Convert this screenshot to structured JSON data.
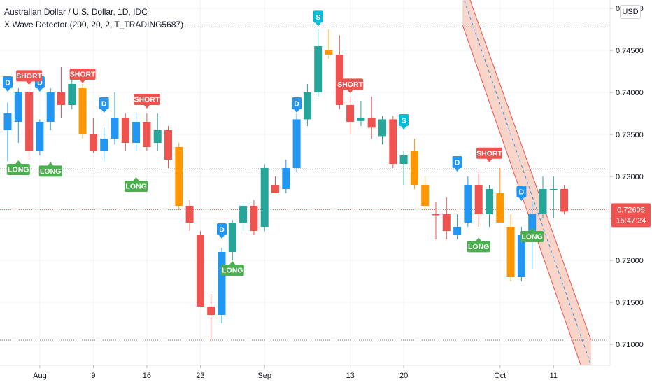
{
  "header": {
    "symbol_line": "Australian Dollar / U.S. Dollar, 1D, IDC",
    "indicator_line": "X Wave Detector (200, 20, 2, T_TRADING5687)"
  },
  "currency_button": "USD",
  "price_label": {
    "price": "0.72605",
    "countdown": "15:47:24",
    "color": "#ef5350"
  },
  "colors": {
    "bull_blue": "#2196f3",
    "bear_red": "#ef5350",
    "bull_teal": "#26a69a",
    "orange": "#ff9800",
    "long_green": "#4caf50",
    "short_red": "#ef5350",
    "d_blue": "#2196f3",
    "s_cyan": "#00bcd4",
    "channel_fill": "#f7c6b6",
    "channel_line": "#ef5350"
  },
  "chart_data": {
    "type": "candlestick",
    "ylim": [
      0.7075,
      0.751
    ],
    "y_ticks": [
      "0.75000",
      "0.74500",
      "0.74000",
      "0.73500",
      "0.73000",
      "0.72500",
      "0.72000",
      "0.71500",
      "0.71000"
    ],
    "y_tick_values": [
      0.75,
      0.745,
      0.74,
      0.735,
      0.73,
      0.725,
      0.72,
      0.715,
      0.71
    ],
    "x_ticks": [
      {
        "label": "Aug",
        "index": 3
      },
      {
        "label": "9",
        "index": 8
      },
      {
        "label": "16",
        "index": 13
      },
      {
        "label": "23",
        "index": 18
      },
      {
        "label": "Sep",
        "index": 24
      },
      {
        "label": "13",
        "index": 32
      },
      {
        "label": "20",
        "index": 37
      },
      {
        "label": "Oct",
        "index": 46
      },
      {
        "label": "11",
        "index": 51
      }
    ],
    "horizontal_levels": [
      0.7478,
      0.7309,
      0.7105
    ],
    "current_price": 0.72605,
    "candles": [
      {
        "o": 0.7355,
        "h": 0.7388,
        "l": 0.7318,
        "c": 0.7375,
        "color": "bull_blue"
      },
      {
        "o": 0.7365,
        "h": 0.7405,
        "l": 0.734,
        "c": 0.74,
        "color": "bull_blue"
      },
      {
        "o": 0.74,
        "h": 0.7405,
        "l": 0.732,
        "c": 0.733,
        "color": "bear_red"
      },
      {
        "o": 0.733,
        "h": 0.7368,
        "l": 0.7325,
        "c": 0.7365,
        "color": "bull_blue"
      },
      {
        "o": 0.7365,
        "h": 0.7405,
        "l": 0.7355,
        "c": 0.74,
        "color": "bull_blue"
      },
      {
        "o": 0.74,
        "h": 0.743,
        "l": 0.737,
        "c": 0.7385,
        "color": "bear_red"
      },
      {
        "o": 0.7385,
        "h": 0.742,
        "l": 0.738,
        "c": 0.741,
        "color": "bull_teal"
      },
      {
        "o": 0.7405,
        "h": 0.741,
        "l": 0.7345,
        "c": 0.735,
        "color": "orange"
      },
      {
        "o": 0.735,
        "h": 0.737,
        "l": 0.7328,
        "c": 0.733,
        "color": "bear_red"
      },
      {
        "o": 0.733,
        "h": 0.7358,
        "l": 0.7318,
        "c": 0.7345,
        "color": "bull_blue"
      },
      {
        "o": 0.7345,
        "h": 0.74,
        "l": 0.7338,
        "c": 0.737,
        "color": "bull_blue"
      },
      {
        "o": 0.737,
        "h": 0.7375,
        "l": 0.733,
        "c": 0.734,
        "color": "bear_red"
      },
      {
        "o": 0.734,
        "h": 0.7375,
        "l": 0.733,
        "c": 0.7365,
        "color": "bull_blue"
      },
      {
        "o": 0.7365,
        "h": 0.7375,
        "l": 0.733,
        "c": 0.7335,
        "color": "bear_red"
      },
      {
        "o": 0.734,
        "h": 0.7375,
        "l": 0.733,
        "c": 0.7355,
        "color": "bull_teal"
      },
      {
        "o": 0.7355,
        "h": 0.736,
        "l": 0.731,
        "c": 0.732,
        "color": "bear_red"
      },
      {
        "o": 0.7335,
        "h": 0.734,
        "l": 0.726,
        "c": 0.7265,
        "color": "orange"
      },
      {
        "o": 0.7265,
        "h": 0.7272,
        "l": 0.7235,
        "c": 0.7245,
        "color": "bear_red"
      },
      {
        "o": 0.723,
        "h": 0.7235,
        "l": 0.7145,
        "c": 0.7145,
        "color": "bear_red"
      },
      {
        "o": 0.7145,
        "h": 0.716,
        "l": 0.7105,
        "c": 0.7135,
        "color": "bear_red"
      },
      {
        "o": 0.7135,
        "h": 0.7215,
        "l": 0.7125,
        "c": 0.721,
        "color": "bull_blue"
      },
      {
        "o": 0.721,
        "h": 0.7248,
        "l": 0.72,
        "c": 0.7245,
        "color": "bull_teal"
      },
      {
        "o": 0.7245,
        "h": 0.727,
        "l": 0.7235,
        "c": 0.7265,
        "color": "bull_teal"
      },
      {
        "o": 0.7265,
        "h": 0.7272,
        "l": 0.723,
        "c": 0.7235,
        "color": "bear_red"
      },
      {
        "o": 0.724,
        "h": 0.7315,
        "l": 0.7235,
        "c": 0.731,
        "color": "bull_teal"
      },
      {
        "o": 0.729,
        "h": 0.73,
        "l": 0.728,
        "c": 0.728,
        "color": "bear_red"
      },
      {
        "o": 0.7285,
        "h": 0.732,
        "l": 0.728,
        "c": 0.731,
        "color": "bull_blue"
      },
      {
        "o": 0.731,
        "h": 0.7375,
        "l": 0.7305,
        "c": 0.7368,
        "color": "bull_blue"
      },
      {
        "o": 0.7368,
        "h": 0.741,
        "l": 0.736,
        "c": 0.74,
        "color": "bull_teal"
      },
      {
        "o": 0.74,
        "h": 0.7475,
        "l": 0.7395,
        "c": 0.7455,
        "color": "bull_teal"
      },
      {
        "o": 0.745,
        "h": 0.7475,
        "l": 0.744,
        "c": 0.7445,
        "color": "orange"
      },
      {
        "o": 0.7445,
        "h": 0.7468,
        "l": 0.738,
        "c": 0.7385,
        "color": "bear_red"
      },
      {
        "o": 0.7385,
        "h": 0.7395,
        "l": 0.735,
        "c": 0.7365,
        "color": "bear_red"
      },
      {
        "o": 0.737,
        "h": 0.739,
        "l": 0.736,
        "c": 0.7366,
        "color": "bull_teal"
      },
      {
        "o": 0.737,
        "h": 0.7395,
        "l": 0.7345,
        "c": 0.7358,
        "color": "bear_red"
      },
      {
        "o": 0.7368,
        "h": 0.7372,
        "l": 0.7338,
        "c": 0.7348,
        "color": "bull_teal"
      },
      {
        "o": 0.7368,
        "h": 0.7372,
        "l": 0.731,
        "c": 0.7315,
        "color": "bear_red"
      },
      {
        "o": 0.7325,
        "h": 0.733,
        "l": 0.729,
        "c": 0.7315,
        "color": "bull_teal"
      },
      {
        "o": 0.733,
        "h": 0.7345,
        "l": 0.7285,
        "c": 0.729,
        "color": "orange"
      },
      {
        "o": 0.729,
        "h": 0.73,
        "l": 0.726,
        "c": 0.7265,
        "color": "orange"
      },
      {
        "o": 0.7255,
        "h": 0.727,
        "l": 0.7225,
        "c": 0.7255,
        "color": "bear_red"
      },
      {
        "o": 0.7255,
        "h": 0.7275,
        "l": 0.7225,
        "c": 0.7235,
        "color": "bear_red"
      },
      {
        "o": 0.723,
        "h": 0.7255,
        "l": 0.7225,
        "c": 0.724,
        "color": "bull_blue"
      },
      {
        "o": 0.7245,
        "h": 0.73,
        "l": 0.724,
        "c": 0.729,
        "color": "bull_blue"
      },
      {
        "o": 0.729,
        "h": 0.7305,
        "l": 0.724,
        "c": 0.7255,
        "color": "bear_red"
      },
      {
        "o": 0.7255,
        "h": 0.729,
        "l": 0.724,
        "c": 0.7285,
        "color": "bull_teal"
      },
      {
        "o": 0.728,
        "h": 0.731,
        "l": 0.7245,
        "c": 0.7245,
        "color": "orange"
      },
      {
        "o": 0.724,
        "h": 0.7255,
        "l": 0.7175,
        "c": 0.718,
        "color": "orange"
      },
      {
        "o": 0.718,
        "h": 0.724,
        "l": 0.7175,
        "c": 0.723,
        "color": "bull_blue"
      },
      {
        "o": 0.723,
        "h": 0.727,
        "l": 0.719,
        "c": 0.7255,
        "color": "bull_blue"
      },
      {
        "o": 0.7255,
        "h": 0.73,
        "l": 0.725,
        "c": 0.7285,
        "color": "bull_teal"
      },
      {
        "o": 0.7285,
        "h": 0.73,
        "l": 0.725,
        "c": 0.7284,
        "color": "bull_teal"
      },
      {
        "o": 0.7285,
        "h": 0.729,
        "l": 0.7255,
        "c": 0.7258,
        "color": "bear_red"
      }
    ],
    "signals": [
      {
        "type": "D",
        "label": "D",
        "index": 0,
        "price": 0.74,
        "place": "above",
        "color": "d_blue"
      },
      {
        "type": "D",
        "label": "D",
        "index": 3,
        "price": 0.74,
        "place": "above",
        "color": "d_blue"
      },
      {
        "type": "D",
        "label": "D",
        "index": 9,
        "price": 0.7375,
        "place": "above",
        "color": "d_blue"
      },
      {
        "type": "D",
        "label": "D",
        "index": 27,
        "price": 0.7375,
        "place": "above",
        "color": "d_blue"
      },
      {
        "type": "D",
        "label": "D",
        "index": 20,
        "price": 0.7225,
        "place": "above",
        "color": "d_blue"
      },
      {
        "type": "D",
        "label": "D",
        "index": 42,
        "price": 0.7305,
        "place": "above",
        "color": "d_blue"
      },
      {
        "type": "D",
        "label": "D",
        "index": 48,
        "price": 0.727,
        "place": "above",
        "color": "d_blue"
      },
      {
        "type": "S",
        "label": "S",
        "index": 29,
        "price": 0.7478,
        "place": "above",
        "color": "s_cyan"
      },
      {
        "type": "S",
        "label": "S",
        "index": 37,
        "price": 0.7355,
        "place": "above",
        "color": "s_cyan"
      },
      {
        "type": "SHORT",
        "label": "SHORT",
        "index": 2,
        "price": 0.7408,
        "place": "above",
        "color": "short_red"
      },
      {
        "type": "SHORT",
        "label": "SHORT",
        "index": 7,
        "price": 0.741,
        "place": "above",
        "color": "short_red"
      },
      {
        "type": "SHORT",
        "label": "SHORT",
        "index": 13,
        "price": 0.738,
        "place": "above",
        "color": "short_red"
      },
      {
        "type": "SHORT",
        "label": "SHORT",
        "index": 32,
        "price": 0.7398,
        "place": "above",
        "color": "short_red"
      },
      {
        "type": "SHORT",
        "label": "SHORT",
        "index": 45,
        "price": 0.7316,
        "place": "above",
        "color": "short_red"
      },
      {
        "type": "LONG",
        "label": "LONG",
        "index": 1,
        "price": 0.732,
        "place": "below",
        "color": "long_green"
      },
      {
        "type": "LONG",
        "label": "LONG",
        "index": 4,
        "price": 0.7318,
        "place": "below",
        "color": "long_green"
      },
      {
        "type": "LONG",
        "label": "LONG",
        "index": 12,
        "price": 0.73,
        "place": "below",
        "color": "long_green"
      },
      {
        "type": "LONG",
        "label": "LONG",
        "index": 21,
        "price": 0.72,
        "place": "below",
        "color": "long_green"
      },
      {
        "type": "LONG",
        "label": "LONG",
        "index": 44,
        "price": 0.7228,
        "place": "below",
        "color": "long_green"
      },
      {
        "type": "LONG",
        "label": "LONG",
        "index": 49,
        "price": 0.724,
        "place": "below",
        "color": "long_green"
      }
    ],
    "channel": {
      "start_index": 42.5,
      "end_index": 54.5,
      "upper_start": 0.7535,
      "upper_end": 0.7105,
      "mid_start": 0.7515,
      "mid_end": 0.7075,
      "lower_start": 0.748,
      "lower_end": 0.704
    }
  }
}
